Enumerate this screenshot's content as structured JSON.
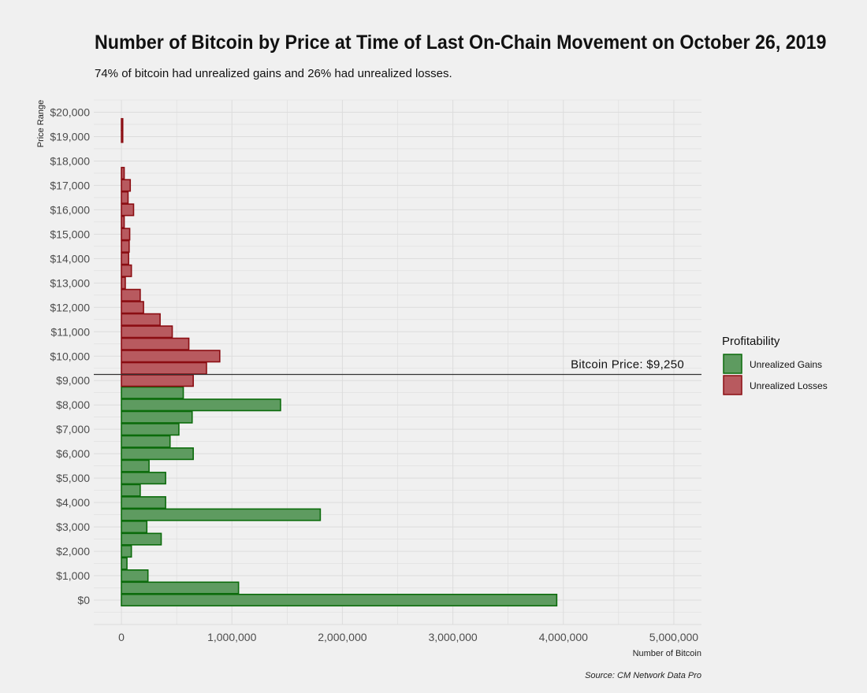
{
  "header": {
    "title": "Number of Bitcoin by Price at Time of Last On-Chain Movement on October 26, 2019",
    "subtitle": "74% of bitcoin had unrealized gains and 26% had unrealized losses."
  },
  "source": "Source: CM Network Data Pro",
  "colors": {
    "background": "#f0f0f0",
    "grid": "#dcdcdc",
    "gains_fill": "#5e9b60",
    "gains_stroke": "#0b6b0b",
    "losses_fill": "#b85a5f",
    "losses_stroke": "#8b0d12",
    "price_line": "#333333"
  },
  "chart_data": {
    "type": "bar",
    "orientation": "horizontal",
    "xlabel": "Number of Bitcoin",
    "ylabel": "Price Range",
    "xlim": [
      -250000,
      5250000
    ],
    "ylim": [
      -1000,
      20500
    ],
    "x_ticks": [
      0,
      1000000,
      2000000,
      3000000,
      4000000,
      5000000
    ],
    "x_tick_labels": [
      "0",
      "1,000,000",
      "2,000,000",
      "3,000,000",
      "4,000,000",
      "5,000,000"
    ],
    "y_ticks": [
      0,
      1000,
      2000,
      3000,
      4000,
      5000,
      6000,
      7000,
      8000,
      9000,
      10000,
      11000,
      12000,
      13000,
      14000,
      15000,
      16000,
      17000,
      18000,
      19000,
      20000
    ],
    "y_tick_labels": [
      "$0",
      "$1,000",
      "$2,000",
      "$3,000",
      "$4,000",
      "$5,000",
      "$6,000",
      "$7,000",
      "$8,000",
      "$9,000",
      "$10,000",
      "$11,000",
      "$12,000",
      "$13,000",
      "$14,000",
      "$15,000",
      "$16,000",
      "$17,000",
      "$18,000",
      "$19,000",
      "$20,000"
    ],
    "bin_width": 500,
    "grid": true,
    "legend": {
      "title": "Profitability",
      "position": "right",
      "entries": [
        "Unrealized Gains",
        "Unrealized Losses"
      ]
    },
    "reference_line": {
      "value": 9250,
      "label": "Bitcoin Price: $9,250"
    },
    "series": [
      {
        "name": "Unrealized Gains",
        "price_bins": [
          0,
          500,
          1000,
          1500,
          2000,
          2500,
          3000,
          3500,
          4000,
          4500,
          5000,
          5500,
          6000,
          6500,
          7000,
          7500,
          8000,
          8500
        ],
        "values": [
          3940000,
          1060000,
          240000,
          50000,
          90000,
          360000,
          230000,
          1800000,
          400000,
          170000,
          400000,
          250000,
          650000,
          440000,
          520000,
          640000,
          1440000,
          560000
        ]
      },
      {
        "name": "Unrealized Losses",
        "price_bins": [
          9000,
          9500,
          10000,
          10500,
          11000,
          11500,
          12000,
          12500,
          13000,
          13500,
          14000,
          14500,
          15000,
          15500,
          16000,
          16500,
          17000,
          17500,
          18000,
          18500,
          19000,
          19500
        ],
        "values": [
          650000,
          770000,
          890000,
          610000,
          460000,
          350000,
          200000,
          170000,
          35000,
          90000,
          65000,
          70000,
          75000,
          25000,
          110000,
          60000,
          80000,
          25000,
          0,
          0,
          12000,
          12000
        ]
      }
    ]
  }
}
